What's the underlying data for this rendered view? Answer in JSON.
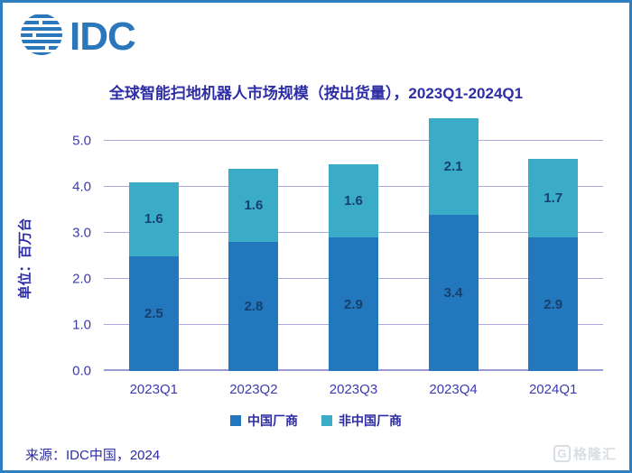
{
  "brand": {
    "logo_text": "IDC"
  },
  "title": "全球智能扫地机器人市场规模（按出货量），2023Q1-2024Q1",
  "chart_data": {
    "type": "bar",
    "subtype": "stacked-vertical",
    "categories": [
      "2023Q1",
      "2023Q2",
      "2023Q3",
      "2023Q4",
      "2024Q1"
    ],
    "series": [
      {
        "name": "中国厂商",
        "color": "#2277bd",
        "values": [
          2.5,
          2.8,
          2.9,
          3.4,
          2.9
        ]
      },
      {
        "name": "非中国厂商",
        "color": "#3aacc8",
        "values": [
          1.6,
          1.6,
          1.6,
          2.1,
          1.7
        ]
      }
    ],
    "totals": [
      4.1,
      4.4,
      4.5,
      5.5,
      4.6
    ],
    "title": "全球智能扫地机器人市场规模（按出货量），2023Q1-2024Q1",
    "xlabel": "",
    "ylabel": "单位：百万台",
    "yticks": [
      "0.0",
      "1.0",
      "2.0",
      "3.0",
      "4.0",
      "5.0"
    ],
    "ylim": [
      0,
      5.6
    ],
    "grid": true,
    "legend_position": "bottom",
    "label_color": "#17406e",
    "gridline_color": "#aaaade"
  },
  "footer": {
    "source": "来源：IDC中国，2024"
  },
  "watermark": {
    "icon": "G",
    "text": "格隆汇"
  },
  "colors": {
    "border": "#2e7fc1",
    "logo": "#2b77bc",
    "text_indigo": "#2d2da6"
  }
}
